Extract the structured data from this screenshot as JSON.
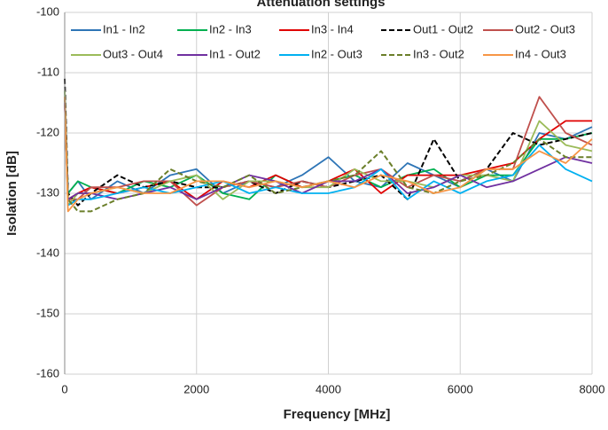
{
  "chart_data": {
    "type": "line",
    "title": "Attenuation settings",
    "x_label": "Frequency [MHz]",
    "y_label": "Isolation [dB]",
    "x": [
      0,
      50,
      200,
      400,
      800,
      1200,
      1600,
      2000,
      2400,
      2800,
      3200,
      3600,
      4000,
      4400,
      4800,
      5200,
      5600,
      6000,
      6400,
      6800,
      7200,
      7600,
      8000
    ],
    "series": [
      {
        "name": "In1 - In2",
        "color": "#2e75b6",
        "style": "solid",
        "values": [
          -113,
          -130,
          -128,
          -131,
          -128,
          -130,
          -127,
          -126,
          -130,
          -128,
          -129,
          -127,
          -124,
          -128,
          -129,
          -125,
          -127,
          -129,
          -126,
          -128,
          -120,
          -121,
          -119
        ]
      },
      {
        "name": "In2 - In3",
        "color": "#00b050",
        "style": "solid",
        "values": [
          -114,
          -130,
          -128,
          -129,
          -130,
          -128,
          -129,
          -127,
          -130,
          -131,
          -127,
          -129,
          -128,
          -127,
          -129,
          -127,
          -126,
          -129,
          -127,
          -127,
          -121,
          -121,
          -120
        ]
      },
      {
        "name": "In3 - In4",
        "color": "#e00000",
        "style": "solid",
        "values": [
          -115,
          -131,
          -130,
          -129,
          -130,
          -129,
          -128,
          -131,
          -128,
          -129,
          -127,
          -129,
          -128,
          -126,
          -130,
          -127,
          -127,
          -127,
          -126,
          -125,
          -121,
          -118,
          -118
        ]
      },
      {
        "name": "Out1 - Out2",
        "color": "#000000",
        "style": "dashed",
        "values": [
          -111,
          -130,
          -132,
          -130,
          -127,
          -129,
          -128,
          -129,
          -129,
          -128,
          -130,
          -128,
          -129,
          -128,
          -127,
          -131,
          -121,
          -128,
          -126,
          -120,
          -122,
          -121,
          -120
        ]
      },
      {
        "name": "Out2 - Out3",
        "color": "#c0504d",
        "style": "solid",
        "values": [
          -114,
          -131,
          -131,
          -129,
          -129,
          -128,
          -128,
          -132,
          -129,
          -128,
          -129,
          -128,
          -129,
          -127,
          -126,
          -129,
          -127,
          -128,
          -126,
          -126,
          -114,
          -120,
          -122
        ]
      },
      {
        "name": "Out3 - Out4",
        "color": "#9bbb59",
        "style": "solid",
        "values": [
          -113,
          -132,
          -130,
          -130,
          -129,
          -130,
          -128,
          -127,
          -131,
          -128,
          -128,
          -129,
          -129,
          -126,
          -128,
          -128,
          -129,
          -127,
          -127,
          -128,
          -118,
          -122,
          -123
        ]
      },
      {
        "name": "In1 - Out2",
        "color": "#7030a0",
        "style": "solid",
        "values": [
          -115,
          -131,
          -130,
          -130,
          -131,
          -130,
          -129,
          -131,
          -129,
          -127,
          -128,
          -130,
          -128,
          -128,
          -126,
          -130,
          -129,
          -127,
          -129,
          -128,
          -126,
          -124,
          -125
        ]
      },
      {
        "name": "In2 - Out3",
        "color": "#00b0f0",
        "style": "solid",
        "values": [
          -114,
          -132,
          -131,
          -131,
          -130,
          -129,
          -130,
          -129,
          -128,
          -130,
          -129,
          -130,
          -130,
          -129,
          -126,
          -131,
          -128,
          -130,
          -128,
          -127,
          -122,
          -126,
          -128
        ]
      },
      {
        "name": "In3 - Out2",
        "color": "#6b7f2a",
        "style": "dashed",
        "values": [
          -114,
          -131,
          -133,
          -133,
          -131,
          -130,
          -126,
          -128,
          -129,
          -127,
          -130,
          -129,
          -128,
          -127,
          -123,
          -129,
          -130,
          -128,
          -127,
          -125,
          -121,
          -124,
          -124
        ]
      },
      {
        "name": "In4 - Out3",
        "color": "#f79646",
        "style": "solid",
        "values": [
          -114,
          -133,
          -131,
          -130,
          -129,
          -130,
          -130,
          -128,
          -128,
          -129,
          -128,
          -129,
          -128,
          -129,
          -127,
          -128,
          -130,
          -129,
          -126,
          -126,
          -123,
          -125,
          -121
        ]
      }
    ],
    "xlim": [
      0,
      8000
    ],
    "xticks": [
      0,
      2000,
      4000,
      6000,
      8000
    ],
    "ylim": [
      -160,
      -100
    ],
    "yticks": [
      -160,
      -150,
      -140,
      -130,
      -120,
      -110,
      -100
    ],
    "grid": true,
    "legend": "top"
  }
}
